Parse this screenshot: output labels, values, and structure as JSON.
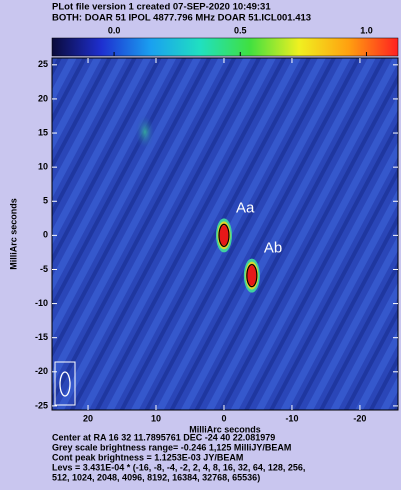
{
  "chart_data": {
    "type": "map",
    "header": [
      "PLot file version 1  created 07-SEP-2020 10:49:31",
      "BOTH: DOAR 51  IPOL  4877.796 MHz  DOAR 51.ICL001.413"
    ],
    "xlabel": "MilliArc seconds",
    "ylabel": "MilliArc seconds",
    "xlim": [
      25.3,
      -25.6
    ],
    "xticks": [
      20,
      10,
      0,
      -10,
      -20
    ],
    "ylim": [
      -25.6,
      26.0
    ],
    "yticks": [
      25,
      20,
      15,
      10,
      5,
      0,
      -5,
      -10,
      -15,
      -20,
      -25
    ],
    "clim": [
      -0.246,
      1.125
    ],
    "cticks": [
      {
        "value": 0,
        "label": "0.0"
      },
      0.5,
      {
        "value": 1,
        "label": "1.0"
      }
    ],
    "colormap": [
      "#0a0a3a",
      "#1e2fd0",
      "#1aa0f0",
      "#20e0c0",
      "#40e040",
      "#f0f020",
      "#ffa010",
      "#ff2020"
    ],
    "sources": [
      {
        "label": "Aa",
        "x": 0,
        "y": 0
      },
      {
        "label": "Ab",
        "x": -4.1,
        "y": -5.9
      }
    ],
    "footer": [
      "Center at RA 16 32 11.7895761  DEC -24 40 22.081979",
      "Grey scale brightness range= -0.246 1,125 MilliJY/BEAM",
      "Cont peak brightness = 1.1253E-03 JY/BEAM",
      "Levs = 3.431E-04 * (-16, -8, -4, -2, 2, 4, 8, 16, 32, 64, 128, 256,",
      "512, 1024, 2048, 4096, 8192, 16384, 32768, 65536)"
    ]
  }
}
